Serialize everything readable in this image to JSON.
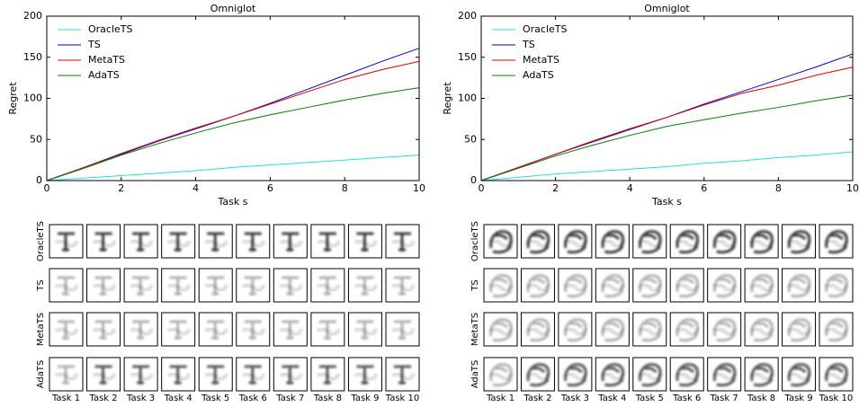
{
  "chart_data": [
    {
      "type": "line",
      "title": "Omniglot",
      "xlabel": "Task s",
      "ylabel": "Regret",
      "x": [
        0,
        1,
        2,
        3,
        4,
        5,
        6,
        7,
        8,
        9,
        10
      ],
      "xlim": [
        0,
        10
      ],
      "ylim": [
        0,
        200
      ],
      "xticks": [
        0,
        2,
        4,
        6,
        8,
        10
      ],
      "yticks": [
        0,
        50,
        100,
        150,
        200
      ],
      "legend": "upper left",
      "series": [
        {
          "name": "OracleTS",
          "color": "#22e0e0",
          "values": [
            0,
            3,
            6,
            9,
            12,
            16,
            19,
            22,
            25,
            28,
            31
          ]
        },
        {
          "name": "TS",
          "color": "#0000cc",
          "values": [
            0,
            16,
            32,
            48,
            63,
            78,
            94,
            111,
            128,
            145,
            161
          ]
        },
        {
          "name": "MetaTS",
          "color": "#dd0000",
          "values": [
            0,
            16,
            33,
            49,
            64,
            78,
            93,
            108,
            123,
            135,
            145
          ]
        },
        {
          "name": "AdaTS",
          "color": "#007f00",
          "values": [
            0,
            15,
            31,
            45,
            58,
            70,
            80,
            89,
            98,
            106,
            113
          ]
        }
      ]
    },
    {
      "type": "line",
      "title": "Omniglot",
      "xlabel": "Task s",
      "ylabel": "Regret",
      "x": [
        0,
        1,
        2,
        3,
        4,
        5,
        6,
        7,
        8,
        9,
        10
      ],
      "xlim": [
        0,
        10
      ],
      "ylim": [
        0,
        200
      ],
      "xticks": [
        0,
        2,
        4,
        6,
        8,
        10
      ],
      "yticks": [
        0,
        50,
        100,
        150,
        200
      ],
      "legend": "upper left",
      "series": [
        {
          "name": "OracleTS",
          "color": "#22e0e0",
          "values": [
            0,
            4,
            8,
            11,
            14,
            17,
            21,
            24,
            28,
            31,
            35
          ]
        },
        {
          "name": "TS",
          "color": "#0000cc",
          "values": [
            0,
            16,
            32,
            48,
            63,
            77,
            93,
            108,
            123,
            138,
            154
          ]
        },
        {
          "name": "MetaTS",
          "color": "#dd0000",
          "values": [
            0,
            16,
            32,
            47,
            62,
            77,
            92,
            106,
            116,
            128,
            138
          ]
        },
        {
          "name": "AdaTS",
          "color": "#007f00",
          "values": [
            0,
            15,
            30,
            43,
            55,
            66,
            74,
            82,
            89,
            97,
            104
          ]
        }
      ]
    }
  ],
  "image_grids": [
    {
      "rows": [
        "OracleTS",
        "TS",
        "MetaTS",
        "AdaTS"
      ],
      "columns": [
        "Task 1",
        "Task 2",
        "Task 3",
        "Task 4",
        "Task 5",
        "Task 6",
        "Task 7",
        "Task 8",
        "Task 9",
        "Task 10"
      ]
    },
    {
      "rows": [
        "OracleTS",
        "TS",
        "MetaTS",
        "AdaTS"
      ],
      "columns": [
        "Task 1",
        "Task 2",
        "Task 3",
        "Task 4",
        "Task 5",
        "Task 6",
        "Task 7",
        "Task 8",
        "Task 9",
        "Task 10"
      ]
    }
  ]
}
